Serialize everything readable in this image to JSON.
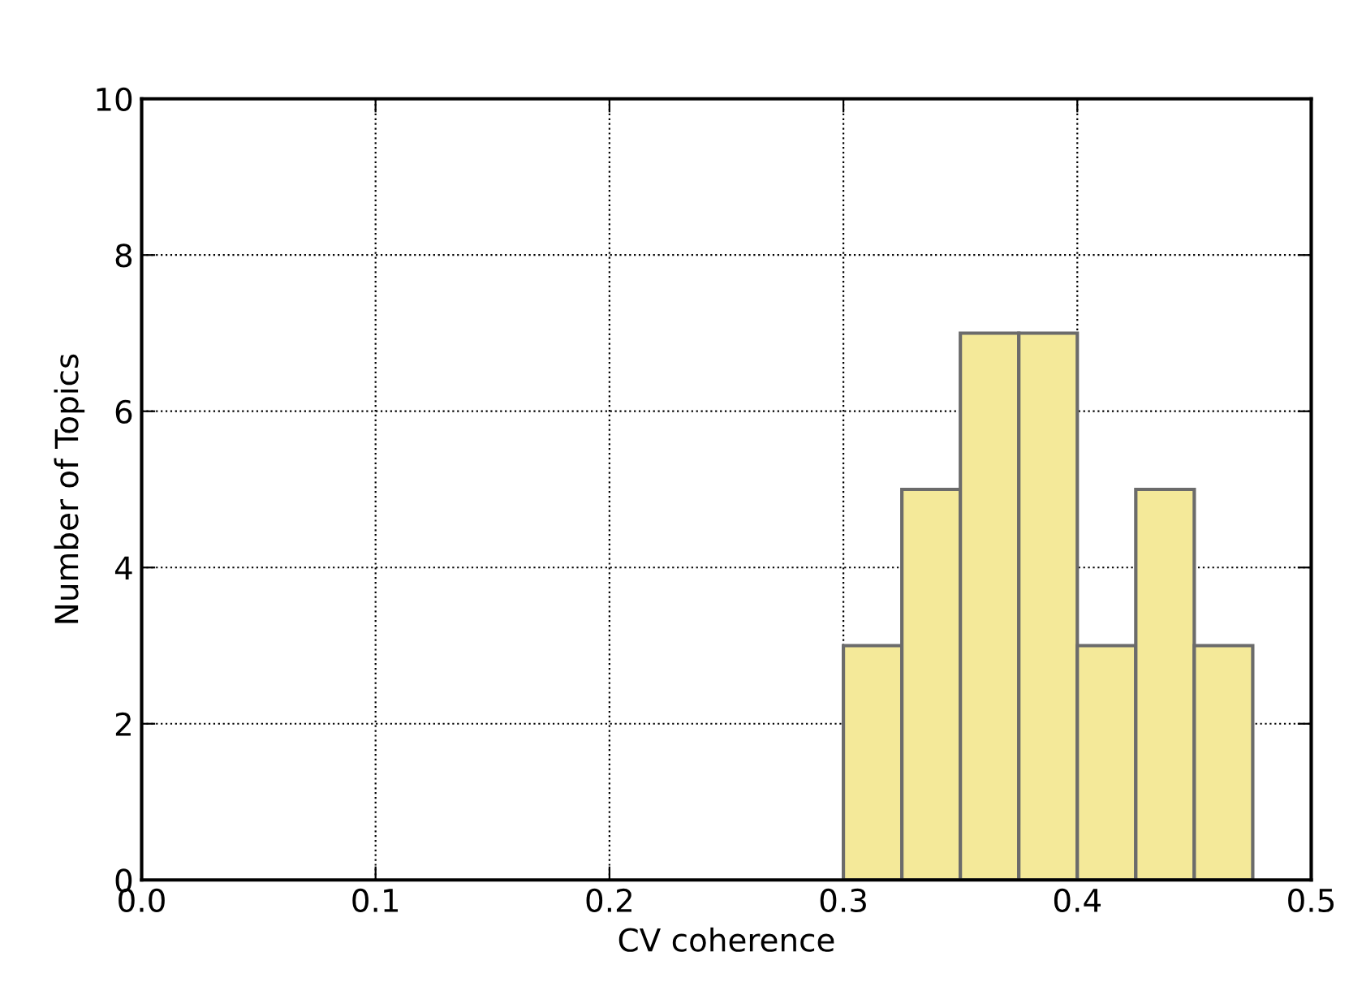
{
  "chart_data": {
    "type": "histogram",
    "xlabel": "CV coherence",
    "ylabel": "Number of Topics",
    "bins": [
      0.3,
      0.325,
      0.35,
      0.375,
      0.4,
      0.425,
      0.45,
      0.475
    ],
    "values": [
      3,
      5,
      7,
      7,
      3,
      5,
      3
    ],
    "color": "#f4e999",
    "xlim": [
      0.0,
      0.5
    ],
    "xticks": [
      {
        "value": 0.0,
        "label": "0.0"
      },
      0.1,
      0.2,
      0.3,
      0.4,
      0.5
    ],
    "ylim": [
      0,
      10
    ],
    "yticks": [
      0,
      2,
      4,
      6,
      8,
      10
    ],
    "grid": true,
    "line_style": "dotted"
  }
}
